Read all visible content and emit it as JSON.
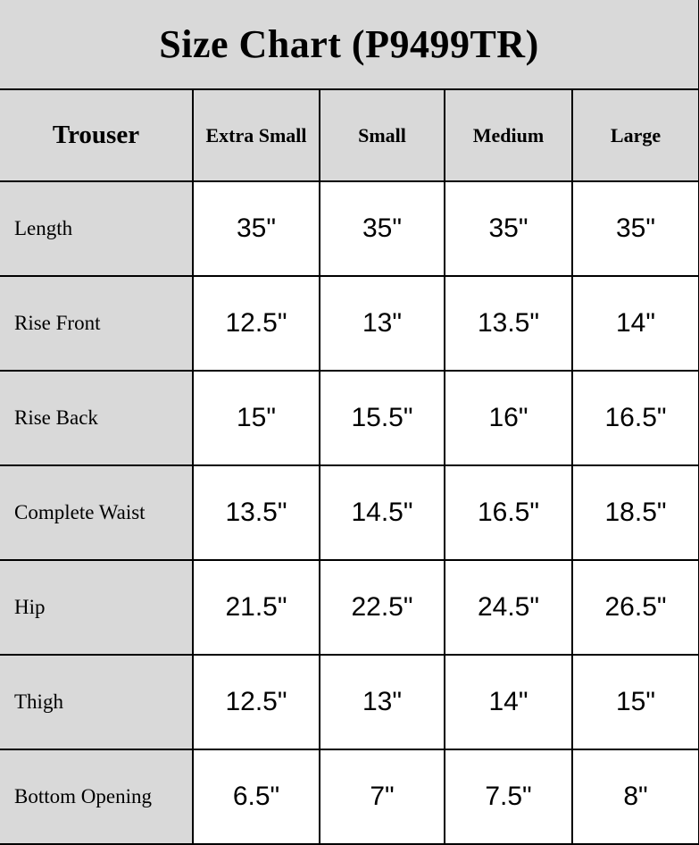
{
  "chart_data": {
    "type": "table",
    "title": "Size Chart (P9499TR)",
    "row_header": "Trouser",
    "columns": [
      "Extra Small",
      "Small",
      "Medium",
      "Large"
    ],
    "rows": [
      {
        "label": "Length",
        "values": [
          "35\"",
          "35\"",
          "35\"",
          "35\""
        ]
      },
      {
        "label": "Rise Front",
        "values": [
          "12.5\"",
          "13\"",
          "13.5\"",
          "14\""
        ]
      },
      {
        "label": "Rise Back",
        "values": [
          "15\"",
          "15.5\"",
          "16\"",
          "16.5\""
        ]
      },
      {
        "label": "Complete Waist",
        "values": [
          "13.5\"",
          "14.5\"",
          "16.5\"",
          "18.5\""
        ]
      },
      {
        "label": "Hip",
        "values": [
          "21.5\"",
          "22.5\"",
          "24.5\"",
          "26.5\""
        ]
      },
      {
        "label": "Thigh",
        "values": [
          "12.5\"",
          "13\"",
          "14\"",
          "15\""
        ]
      },
      {
        "label": "Bottom Opening",
        "values": [
          "6.5\"",
          "7\"",
          "7.5\"",
          "8\""
        ]
      }
    ],
    "layout": {
      "legend": "none",
      "grid": "on",
      "header_background": "#d9d9d9",
      "cell_background": "#ffffff",
      "border_color": "#000000",
      "text_color": "#000000"
    }
  }
}
